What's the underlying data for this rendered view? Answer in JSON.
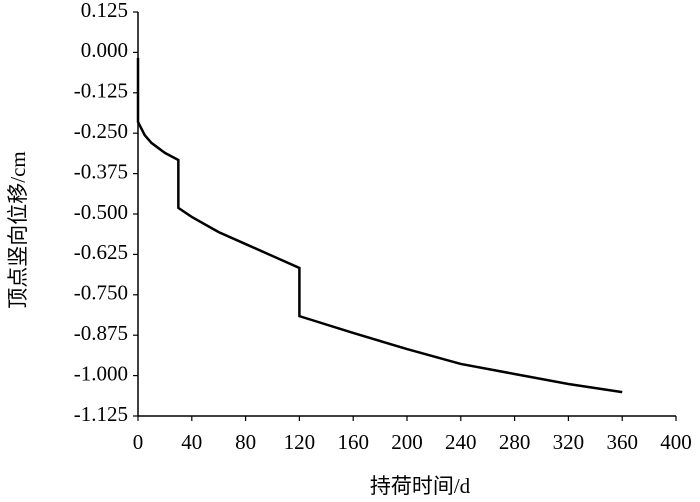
{
  "chart_data": {
    "type": "line",
    "x_label": "持荷时间/d",
    "y_label": "顶点竖向位移/cm",
    "x": [
      0,
      0,
      5,
      10,
      20,
      30,
      30,
      40,
      60,
      80,
      100,
      120,
      120,
      160,
      200,
      240,
      280,
      320,
      360
    ],
    "series": [
      {
        "color": "#000000",
        "values": [
          -0.017,
          -0.215,
          -0.256,
          -0.28,
          -0.311,
          -0.333,
          -0.481,
          -0.509,
          -0.556,
          -0.593,
          -0.63,
          -0.667,
          -0.816,
          -0.868,
          -0.918,
          -0.964,
          -0.995,
          -1.026,
          -1.051
        ]
      }
    ],
    "xlim": [
      0,
      400
    ],
    "xticks": [
      0,
      40,
      80,
      120,
      160,
      200,
      240,
      280,
      320,
      360,
      400
    ],
    "ylim": [
      -1.125,
      0.125
    ],
    "yticks": [
      -1.125,
      {
        "value": -1,
        "label": "-1.000"
      },
      -0.875,
      {
        "value": -0.75,
        "label": "-0.750"
      },
      -0.625,
      {
        "value": -0.5,
        "label": "-0.500"
      },
      -0.375,
      {
        "value": -0.25,
        "label": "-0.250"
      },
      -0.125,
      {
        "value": 0,
        "label": "0.000"
      },
      0.125
    ]
  }
}
